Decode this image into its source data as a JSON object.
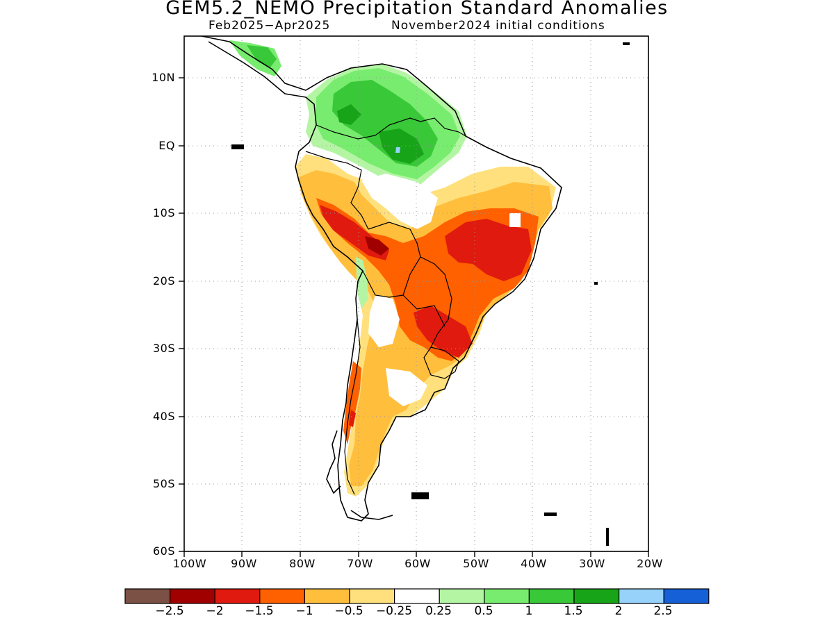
{
  "title": "GEM5.2_NEMO Precipitation Standard Anomalies",
  "subtitle_left": "Feb2025-Apr2025",
  "subtitle_right": "November2024 initial conditions",
  "map": {
    "region": "South America",
    "lon_range": [
      -100,
      -20
    ],
    "lat_range": [
      -60,
      15
    ],
    "grid": true,
    "lat_labels": [
      "10N",
      "EQ",
      "10S",
      "20S",
      "30S",
      "40S",
      "50S",
      "60S"
    ],
    "lon_labels": [
      "100W",
      "90W",
      "80W",
      "70W",
      "60W",
      "50W",
      "40W",
      "30W",
      "20W"
    ]
  },
  "colorbar": {
    "colors": [
      "#7b5145",
      "#a00000",
      "#e01a0e",
      "#ff6000",
      "#ffbe3c",
      "#ffe07c",
      "#ffffff",
      "#b4f5a4",
      "#78ec6e",
      "#38c838",
      "#18a418",
      "#96d2fa",
      "#1560d6"
    ],
    "tick_labels": [
      "-2.5",
      "-2",
      "-1.5",
      "-1",
      "-0.5",
      "-0.25",
      "0.25",
      "0.5",
      "1",
      "1.5",
      "2",
      "2.5"
    ]
  }
}
